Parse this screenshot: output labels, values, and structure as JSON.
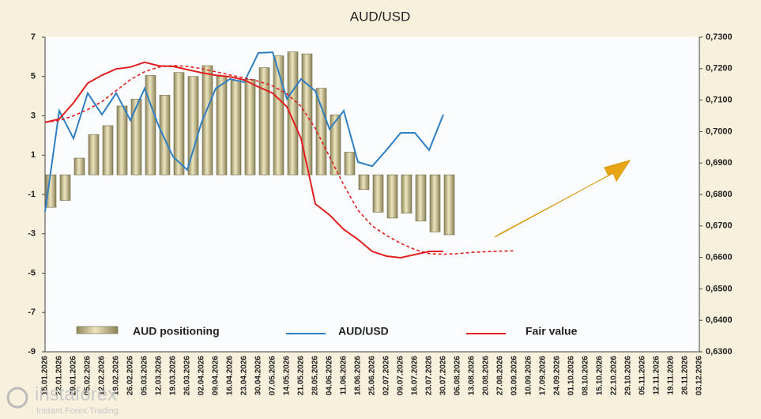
{
  "chart_data": {
    "type": "bar",
    "title": "AUD/USD",
    "categories": [
      "15.01.2026",
      "22.01.2026",
      "29.01.2026",
      "05.02.2026",
      "12.02.2026",
      "19.02.2026",
      "26.02.2026",
      "05.03.2026",
      "12.03.2026",
      "19.03.2026",
      "26.03.2026",
      "02.04.2026",
      "09.04.2026",
      "16.04.2026",
      "23.04.2026",
      "30.04.2026",
      "07.05.2026",
      "14.05.2026",
      "21.05.2026",
      "28.05.2026",
      "04.06.2026",
      "11.06.2026",
      "18.06.2026",
      "25.06.2026",
      "02.07.2026",
      "09.07.2026",
      "16.07.2026",
      "23.07.2026",
      "30.07.2026",
      "06.08.2026",
      "13.08.2026",
      "20.08.2026",
      "27.08.2026",
      "03.09.2026",
      "10.09.2026",
      "17.09.2026",
      "24.09.2026",
      "01.10.2026",
      "08.10.2026",
      "15.10.2026",
      "22.10.2026",
      "29.10.2026",
      "05.11.2026",
      "12.11.2026",
      "19.11.2026",
      "26.11.2026",
      "03.12.2026"
    ],
    "series": [
      {
        "name": "AUD positioning",
        "type": "bar",
        "color": "#c2ba8c",
        "values": [
          -1.65,
          -1.3,
          0.85,
          2.05,
          2.5,
          3.5,
          3.85,
          5.05,
          4.05,
          5.2,
          5,
          5.55,
          5,
          4.8,
          4.85,
          5.45,
          6.05,
          6.25,
          6.15,
          4.4,
          3.05,
          1.15,
          -0.75,
          -1.9,
          -2.2,
          -1.95,
          -2.35,
          -2.9,
          -3.05,
          null,
          null,
          null,
          null,
          null,
          null,
          null,
          null,
          null,
          null,
          null,
          null,
          null,
          null,
          null,
          null,
          null,
          null
        ]
      },
      {
        "name": "AUD/USD",
        "type": "line",
        "axis": "y2",
        "color": "#2f7fc1",
        "values": [
          0.6745,
          0.7066,
          0.6978,
          0.7122,
          0.7054,
          0.7122,
          0.7036,
          0.7137,
          0.7016,
          0.692,
          0.6878,
          0.7029,
          0.7137,
          0.7167,
          0.7157,
          0.725,
          0.7252,
          0.7104,
          0.7167,
          0.7129,
          0.7008,
          0.7066,
          0.6903,
          0.689,
          0.6941,
          0.6996,
          0.6996,
          0.6941,
          0.7054,
          null,
          null,
          null,
          null,
          null,
          null,
          null,
          null,
          null,
          null,
          null,
          null,
          null,
          null,
          null,
          null,
          null,
          null
        ]
      },
      {
        "name": "Fair value",
        "type": "line",
        "axis": "y2",
        "color": "#e02020",
        "values": [
          0.7029,
          0.704,
          0.7091,
          0.7154,
          0.7179,
          0.7199,
          0.7205,
          0.722,
          0.7209,
          0.7207,
          0.7197,
          0.7187,
          0.7179,
          0.7174,
          0.7164,
          0.7142,
          0.7122,
          0.7079,
          0.6978,
          0.677,
          0.6735,
          0.6689,
          0.6657,
          0.6619,
          0.6604,
          0.6599,
          0.6609,
          0.6619,
          0.6619,
          null,
          null,
          null,
          null,
          null,
          null,
          null,
          null,
          null,
          null,
          null,
          null,
          null,
          null,
          null,
          null,
          null,
          null
        ]
      },
      {
        "type": "line",
        "axis": "y2",
        "color": "#e02020",
        "dash": true,
        "values": [
          0.703,
          0.7035,
          0.705,
          0.707,
          0.7095,
          0.713,
          0.7165,
          0.719,
          0.7205,
          0.721,
          0.7207,
          0.72,
          0.719,
          0.718,
          0.717,
          0.716,
          0.7145,
          0.712,
          0.708,
          0.701,
          0.692,
          0.683,
          0.675,
          0.67,
          0.667,
          0.6645,
          0.6625,
          0.6612,
          0.661,
          0.6612,
          0.6616,
          0.6618,
          0.662,
          0.6621,
          null,
          null,
          null,
          null,
          null,
          null,
          null,
          null,
          null,
          null,
          null,
          null,
          null
        ]
      }
    ],
    "ylim": [
      -9,
      7
    ],
    "yticks": [
      -9,
      -7,
      -5,
      -3,
      -1,
      1,
      3,
      5,
      7
    ],
    "y2lim": [
      0.63,
      0.73
    ],
    "y2ticks": [
      {
        "value": 0.63,
        "label": "0,6300"
      },
      {
        "value": 0.64,
        "label": "0,6400"
      },
      {
        "value": 0.65,
        "label": "0,6500"
      },
      {
        "value": 0.66,
        "label": "0,6600"
      },
      {
        "value": 0.67,
        "label": "0,6700"
      },
      {
        "value": 0.68,
        "label": "0,6800"
      },
      {
        "value": 0.69,
        "label": "0,6900"
      },
      {
        "value": 0.7,
        "label": "0,7000"
      },
      {
        "value": 0.71,
        "label": "0,7100"
      },
      {
        "value": 0.72,
        "label": "0,7200"
      },
      {
        "value": 0.73,
        "label": "0,7300"
      }
    ]
  },
  "watermark": {
    "brand": "instaforex",
    "tagline": "Instant Forex Trading"
  }
}
